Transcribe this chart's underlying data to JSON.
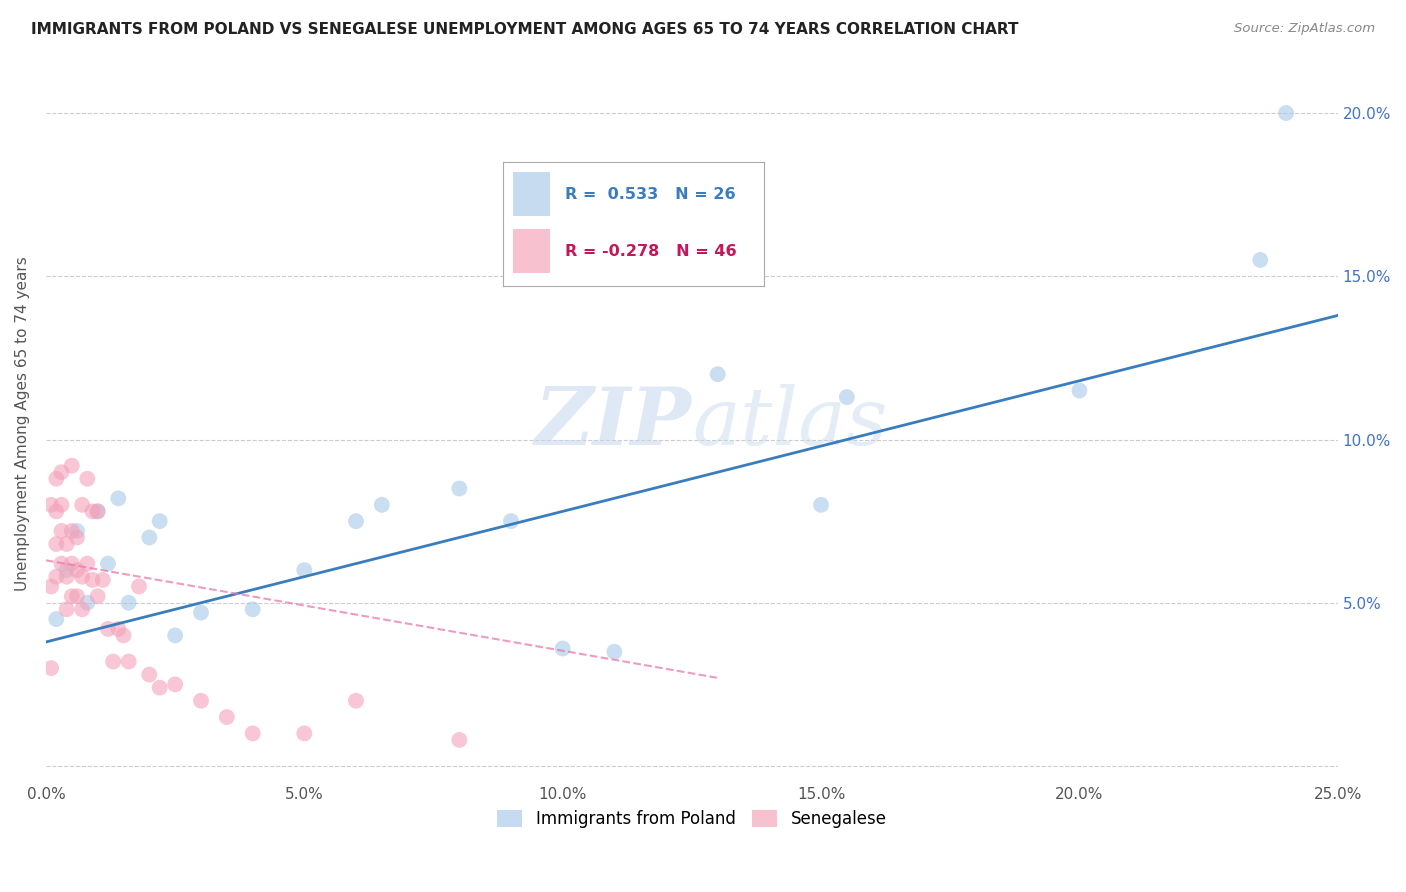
{
  "title": "IMMIGRANTS FROM POLAND VS SENEGALESE UNEMPLOYMENT AMONG AGES 65 TO 74 YEARS CORRELATION CHART",
  "source": "Source: ZipAtlas.com",
  "ylabel": "Unemployment Among Ages 65 to 74 years",
  "xlim": [
    0.0,
    0.25
  ],
  "ylim": [
    -0.005,
    0.215
  ],
  "xticks": [
    0.0,
    0.05,
    0.1,
    0.15,
    0.2,
    0.25
  ],
  "yticks": [
    0.0,
    0.05,
    0.1,
    0.15,
    0.2
  ],
  "xtick_labels": [
    "0.0%",
    "5.0%",
    "10.0%",
    "15.0%",
    "20.0%",
    "25.0%"
  ],
  "ytick_labels_right": [
    "",
    "5.0%",
    "10.0%",
    "15.0%",
    "20.0%"
  ],
  "legend1_label": "Immigrants from Poland",
  "legend2_label": "Senegalese",
  "R1": 0.533,
  "N1": 26,
  "R2": -0.278,
  "N2": 46,
  "blue_color": "#a8c8e8",
  "pink_color": "#f4a0b8",
  "blue_line_color": "#3a7dbf",
  "pink_line_color": "#e87aaa",
  "background_color": "#ffffff",
  "blue_scatter_x": [
    0.002,
    0.004,
    0.006,
    0.008,
    0.01,
    0.012,
    0.014,
    0.016,
    0.02,
    0.022,
    0.025,
    0.03,
    0.04,
    0.05,
    0.06,
    0.065,
    0.08,
    0.09,
    0.1,
    0.11,
    0.13,
    0.15,
    0.155,
    0.2,
    0.235,
    0.24
  ],
  "blue_scatter_y": [
    0.045,
    0.06,
    0.072,
    0.05,
    0.078,
    0.062,
    0.082,
    0.05,
    0.07,
    0.075,
    0.04,
    0.047,
    0.048,
    0.06,
    0.075,
    0.08,
    0.085,
    0.075,
    0.036,
    0.035,
    0.12,
    0.08,
    0.113,
    0.115,
    0.155,
    0.2
  ],
  "pink_scatter_x": [
    0.001,
    0.001,
    0.001,
    0.002,
    0.002,
    0.002,
    0.002,
    0.003,
    0.003,
    0.003,
    0.003,
    0.004,
    0.004,
    0.004,
    0.005,
    0.005,
    0.005,
    0.005,
    0.006,
    0.006,
    0.006,
    0.007,
    0.007,
    0.007,
    0.008,
    0.008,
    0.009,
    0.009,
    0.01,
    0.01,
    0.011,
    0.012,
    0.013,
    0.014,
    0.015,
    0.016,
    0.018,
    0.02,
    0.022,
    0.025,
    0.03,
    0.035,
    0.04,
    0.05,
    0.06,
    0.08
  ],
  "pink_scatter_y": [
    0.03,
    0.055,
    0.08,
    0.058,
    0.068,
    0.078,
    0.088,
    0.062,
    0.072,
    0.08,
    0.09,
    0.048,
    0.058,
    0.068,
    0.052,
    0.062,
    0.072,
    0.092,
    0.052,
    0.06,
    0.07,
    0.048,
    0.058,
    0.08,
    0.062,
    0.088,
    0.057,
    0.078,
    0.052,
    0.078,
    0.057,
    0.042,
    0.032,
    0.042,
    0.04,
    0.032,
    0.055,
    0.028,
    0.024,
    0.025,
    0.02,
    0.015,
    0.01,
    0.01,
    0.02,
    0.008
  ],
  "blue_trendline_x": [
    0.0,
    0.25
  ],
  "blue_trendline_y": [
    0.038,
    0.138
  ],
  "pink_trendline_x": [
    0.0,
    0.13
  ],
  "pink_trendline_y": [
    0.063,
    0.027
  ]
}
